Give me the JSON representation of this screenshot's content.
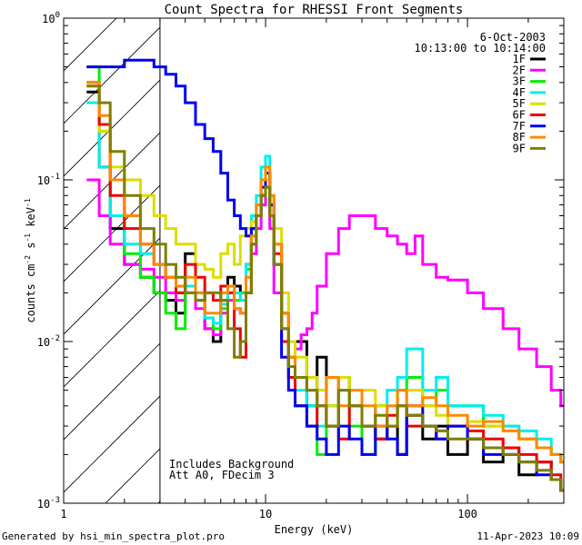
{
  "chart_data": {
    "type": "line",
    "title": "Count Spectra for RHESSI Front Segments",
    "xlabel": "Energy (keV)",
    "ylabel": "counts cm-2 s-1 keV-1",
    "xscale": "log",
    "yscale": "log",
    "xlim": [
      1,
      300
    ],
    "ylim": [
      0.001,
      1.0
    ],
    "x_ticks": [
      {
        "value": 1,
        "label": "1"
      },
      {
        "value": 10,
        "label": "10"
      },
      {
        "value": 100,
        "label": "100"
      }
    ],
    "y_ticks": [
      {
        "value": 1,
        "label": "10",
        "exp": "0"
      },
      {
        "value": 0.1,
        "label": "10",
        "exp": "-1"
      },
      {
        "value": 0.01,
        "label": "10",
        "exp": "-2"
      },
      {
        "value": 0.001,
        "label": "10",
        "exp": "-3"
      }
    ],
    "hatched_region_max_energy_kev": 3,
    "annotations": {
      "date": "6-Oct-2003",
      "time_range": "10:13:00 to 10:14:00",
      "background_note": "Includes Background",
      "attenuator_note": "Att A0, FDecim 3"
    },
    "series": [
      {
        "name": "1F",
        "color": "#000000",
        "x": [
          1.3,
          1.5,
          1.7,
          2.0,
          2.4,
          2.8,
          3.2,
          3.6,
          4.0,
          4.5,
          5.0,
          5.5,
          6.0,
          6.5,
          7.0,
          7.5,
          8.0,
          8.5,
          9.0,
          9.5,
          10.0,
          10.5,
          11.0,
          12.0,
          13.0,
          14.0,
          16.0,
          18.0,
          20.0,
          23.0,
          26.0,
          30.0,
          35.0,
          40.0,
          45.0,
          50.0,
          60.0,
          70.0,
          80.0,
          100.0,
          120.0,
          150.0,
          180.0,
          220.0,
          260.0,
          290.0
        ],
        "y": [
          0.35,
          0.12,
          0.05,
          0.03,
          0.025,
          0.02,
          0.018,
          0.015,
          0.035,
          0.02,
          0.012,
          0.01,
          0.018,
          0.025,
          0.022,
          0.02,
          0.03,
          0.05,
          0.06,
          0.08,
          0.1,
          0.06,
          0.03,
          0.015,
          0.008,
          0.01,
          0.004,
          0.008,
          0.003,
          0.006,
          0.004,
          0.003,
          0.0025,
          0.003,
          0.002,
          0.0035,
          0.0025,
          0.003,
          0.002,
          0.0025,
          0.0018,
          0.0022,
          0.0015,
          0.0018,
          0.0014,
          0.0012
        ]
      },
      {
        "name": "2F",
        "color": "#ff00ff",
        "x": [
          1.3,
          1.5,
          1.7,
          2.0,
          2.4,
          2.8,
          3.2,
          3.6,
          4.0,
          4.5,
          5.0,
          5.5,
          6.0,
          6.5,
          7.0,
          7.5,
          8.0,
          8.5,
          9.0,
          9.5,
          10.0,
          10.5,
          11.0,
          12.0,
          13.0,
          14.0,
          15.0,
          16.0,
          17.0,
          18.0,
          20.0,
          23.0,
          26.0,
          30.0,
          35.0,
          40.0,
          45.0,
          50.0,
          55.0,
          60.0,
          70.0,
          80.0,
          100.0,
          120.0,
          150.0,
          180.0,
          220.0,
          260.0,
          290.0
        ],
        "y": [
          0.1,
          0.06,
          0.04,
          0.03,
          0.028,
          0.025,
          0.02,
          0.018,
          0.02,
          0.016,
          0.012,
          0.011,
          0.015,
          0.018,
          0.016,
          0.015,
          0.02,
          0.035,
          0.05,
          0.07,
          0.09,
          0.05,
          0.02,
          0.012,
          0.01,
          0.009,
          0.011,
          0.012,
          0.015,
          0.022,
          0.035,
          0.05,
          0.06,
          0.06,
          0.05,
          0.045,
          0.04,
          0.035,
          0.045,
          0.03,
          0.025,
          0.024,
          0.02,
          0.016,
          0.012,
          0.009,
          0.007,
          0.005,
          0.004
        ]
      },
      {
        "name": "3F",
        "color": "#00ee00",
        "x": [
          1.3,
          1.5,
          1.7,
          2.0,
          2.4,
          2.8,
          3.2,
          3.6,
          4.0,
          4.5,
          5.0,
          5.5,
          6.0,
          6.5,
          7.0,
          7.5,
          8.0,
          8.5,
          9.0,
          9.5,
          10.0,
          10.5,
          11.0,
          12.0,
          13.0,
          14.0,
          16.0,
          18.0,
          20.0,
          23.0,
          26.0,
          30.0,
          35.0,
          40.0,
          45.0,
          50.0,
          60.0,
          70.0,
          80.0,
          100.0,
          120.0,
          150.0,
          180.0,
          220.0,
          260.0,
          290.0
        ],
        "y": [
          0.5,
          0.2,
          0.06,
          0.035,
          0.025,
          0.02,
          0.015,
          0.012,
          0.02,
          0.018,
          0.014,
          0.012,
          0.016,
          0.02,
          0.018,
          0.02,
          0.028,
          0.045,
          0.07,
          0.09,
          0.11,
          0.07,
          0.04,
          0.012,
          0.006,
          0.004,
          0.003,
          0.002,
          0.004,
          0.006,
          0.003,
          0.002,
          0.004,
          0.003,
          0.005,
          0.006,
          0.004,
          0.005,
          0.004,
          0.004,
          0.003,
          0.003,
          0.0025,
          0.0022,
          0.002,
          0.0018
        ]
      },
      {
        "name": "4F",
        "color": "#00eeee",
        "x": [
          1.3,
          1.5,
          1.7,
          2.0,
          2.4,
          2.8,
          3.2,
          3.6,
          4.0,
          4.5,
          5.0,
          5.5,
          6.0,
          6.5,
          7.0,
          7.5,
          8.0,
          8.5,
          9.0,
          9.5,
          10.0,
          10.5,
          11.0,
          12.0,
          13.0,
          14.0,
          16.0,
          18.0,
          20.0,
          23.0,
          26.0,
          30.0,
          35.0,
          40.0,
          45.0,
          50.0,
          60.0,
          70.0,
          80.0,
          100.0,
          120.0,
          150.0,
          180.0,
          220.0,
          260.0,
          290.0
        ],
        "y": [
          0.3,
          0.12,
          0.06,
          0.04,
          0.035,
          0.03,
          0.025,
          0.02,
          0.022,
          0.018,
          0.014,
          0.013,
          0.017,
          0.022,
          0.02,
          0.018,
          0.03,
          0.06,
          0.08,
          0.12,
          0.14,
          0.08,
          0.03,
          0.01,
          0.006,
          0.005,
          0.004,
          0.003,
          0.004,
          0.005,
          0.004,
          0.003,
          0.004,
          0.005,
          0.006,
          0.009,
          0.005,
          0.006,
          0.004,
          0.004,
          0.0035,
          0.003,
          0.0028,
          0.0025,
          0.002,
          0.0018
        ]
      },
      {
        "name": "5F",
        "color": "#dddd00",
        "x": [
          1.3,
          1.5,
          1.7,
          2.0,
          2.4,
          2.8,
          3.2,
          3.6,
          4.0,
          4.5,
          5.0,
          5.5,
          6.0,
          6.5,
          7.0,
          7.5,
          8.0,
          8.5,
          9.0,
          9.5,
          10.0,
          10.5,
          11.0,
          12.0,
          13.0,
          14.0,
          16.0,
          18.0,
          20.0,
          23.0,
          26.0,
          30.0,
          35.0,
          40.0,
          45.0,
          50.0,
          60.0,
          70.0,
          80.0,
          100.0,
          120.0,
          150.0,
          180.0,
          220.0,
          260.0,
          290.0
        ],
        "y": [
          0.38,
          0.2,
          0.12,
          0.1,
          0.08,
          0.06,
          0.05,
          0.04,
          0.04,
          0.03,
          0.028,
          0.025,
          0.035,
          0.04,
          0.03,
          0.045,
          0.05,
          0.055,
          0.07,
          0.09,
          0.1,
          0.08,
          0.05,
          0.02,
          0.01,
          0.008,
          0.006,
          0.005,
          0.004,
          0.006,
          0.004,
          0.005,
          0.004,
          0.003,
          0.004,
          0.005,
          0.004,
          0.0035,
          0.003,
          0.0032,
          0.003,
          0.0028,
          0.0025,
          0.0022,
          0.002,
          0.0018
        ]
      },
      {
        "name": "6F",
        "color": "#ee0000",
        "x": [
          1.3,
          1.5,
          1.7,
          2.0,
          2.4,
          2.8,
          3.2,
          3.6,
          4.0,
          4.5,
          5.0,
          5.5,
          6.0,
          6.5,
          7.0,
          7.5,
          8.0,
          8.5,
          9.0,
          9.5,
          10.0,
          10.5,
          11.0,
          12.0,
          13.0,
          14.0,
          16.0,
          18.0,
          20.0,
          23.0,
          26.0,
          30.0,
          35.0,
          40.0,
          45.0,
          50.0,
          60.0,
          70.0,
          80.0,
          100.0,
          120.0,
          150.0,
          180.0,
          220.0,
          260.0,
          290.0
        ],
        "y": [
          0.4,
          0.22,
          0.08,
          0.05,
          0.04,
          0.03,
          0.025,
          0.02,
          0.03,
          0.025,
          0.02,
          0.018,
          0.022,
          0.02,
          0.012,
          0.008,
          0.02,
          0.04,
          0.06,
          0.08,
          0.09,
          0.06,
          0.035,
          0.01,
          0.006,
          0.004,
          0.003,
          0.004,
          0.003,
          0.0025,
          0.004,
          0.003,
          0.0025,
          0.0035,
          0.004,
          0.003,
          0.003,
          0.0025,
          0.003,
          0.0028,
          0.0025,
          0.0022,
          0.002,
          0.0018,
          0.0015,
          0.0012
        ]
      },
      {
        "name": "7F",
        "color": "#0000ee",
        "x": [
          1.3,
          1.5,
          1.7,
          2.0,
          2.4,
          2.8,
          3.2,
          3.6,
          4.0,
          4.5,
          5.0,
          5.5,
          6.0,
          6.5,
          7.0,
          7.5,
          8.0,
          8.5,
          9.0,
          9.5,
          10.0,
          10.5,
          11.0,
          12.0,
          13.0,
          14.0,
          16.0,
          18.0,
          20.0,
          23.0,
          26.0,
          30.0,
          35.0,
          40.0,
          45.0,
          50.0,
          60.0,
          70.0,
          80.0,
          100.0,
          120.0,
          150.0,
          180.0,
          220.0,
          260.0,
          290.0
        ],
        "y": [
          0.5,
          0.5,
          0.5,
          0.55,
          0.55,
          0.5,
          0.45,
          0.38,
          0.3,
          0.22,
          0.18,
          0.15,
          0.11,
          0.075,
          0.06,
          0.05,
          0.045,
          0.05,
          0.06,
          0.09,
          0.11,
          0.07,
          0.03,
          0.008,
          0.005,
          0.004,
          0.003,
          0.0025,
          0.002,
          0.003,
          0.0025,
          0.002,
          0.003,
          0.0025,
          0.002,
          0.004,
          0.003,
          0.0025,
          0.003,
          0.0025,
          0.002,
          0.002,
          0.0018,
          0.0015,
          0.0014,
          0.0012
        ]
      },
      {
        "name": "8F",
        "color": "#ff8800",
        "x": [
          1.3,
          1.5,
          1.7,
          2.0,
          2.4,
          2.8,
          3.2,
          3.6,
          4.0,
          4.5,
          5.0,
          5.5,
          6.0,
          6.5,
          7.0,
          7.5,
          8.0,
          8.5,
          9.0,
          9.5,
          10.0,
          10.5,
          11.0,
          12.0,
          13.0,
          14.0,
          16.0,
          18.0,
          20.0,
          23.0,
          26.0,
          30.0,
          35.0,
          40.0,
          45.0,
          50.0,
          60.0,
          70.0,
          80.0,
          100.0,
          120.0,
          150.0,
          180.0,
          220.0,
          260.0,
          290.0
        ],
        "y": [
          0.4,
          0.25,
          0.1,
          0.06,
          0.04,
          0.03,
          0.025,
          0.022,
          0.025,
          0.02,
          0.015,
          0.015,
          0.02,
          0.022,
          0.016,
          0.015,
          0.025,
          0.045,
          0.07,
          0.1,
          0.12,
          0.08,
          0.04,
          0.015,
          0.008,
          0.006,
          0.005,
          0.004,
          0.006,
          0.004,
          0.005,
          0.004,
          0.003,
          0.004,
          0.005,
          0.004,
          0.0045,
          0.004,
          0.0035,
          0.003,
          0.0032,
          0.0028,
          0.0025,
          0.0022,
          0.002,
          0.0018
        ]
      },
      {
        "name": "9F",
        "color": "#7f7f00",
        "x": [
          1.3,
          1.5,
          1.7,
          2.0,
          2.4,
          2.8,
          3.2,
          3.6,
          4.0,
          4.5,
          5.0,
          5.5,
          6.0,
          6.5,
          7.0,
          7.5,
          8.0,
          8.5,
          9.0,
          9.5,
          10.0,
          10.5,
          11.0,
          12.0,
          13.0,
          14.0,
          16.0,
          18.0,
          20.0,
          23.0,
          26.0,
          30.0,
          35.0,
          40.0,
          45.0,
          50.0,
          60.0,
          70.0,
          80.0,
          100.0,
          120.0,
          150.0,
          180.0,
          220.0,
          260.0,
          290.0
        ],
        "y": [
          0.38,
          0.3,
          0.15,
          0.08,
          0.05,
          0.04,
          0.03,
          0.025,
          0.02,
          0.018,
          0.02,
          0.02,
          0.018,
          0.012,
          0.008,
          0.01,
          0.02,
          0.04,
          0.06,
          0.08,
          0.09,
          0.06,
          0.03,
          0.012,
          0.007,
          0.006,
          0.005,
          0.004,
          0.003,
          0.005,
          0.004,
          0.003,
          0.0035,
          0.003,
          0.004,
          0.0035,
          0.003,
          0.0028,
          0.0025,
          0.0025,
          0.0022,
          0.002,
          0.0018,
          0.0016,
          0.0014,
          0.0012
        ]
      }
    ]
  },
  "footer": {
    "generated_by": "Generated by hsi_min_spectra_plot.pro",
    "timestamp": "11-Apr-2023 10:09"
  }
}
